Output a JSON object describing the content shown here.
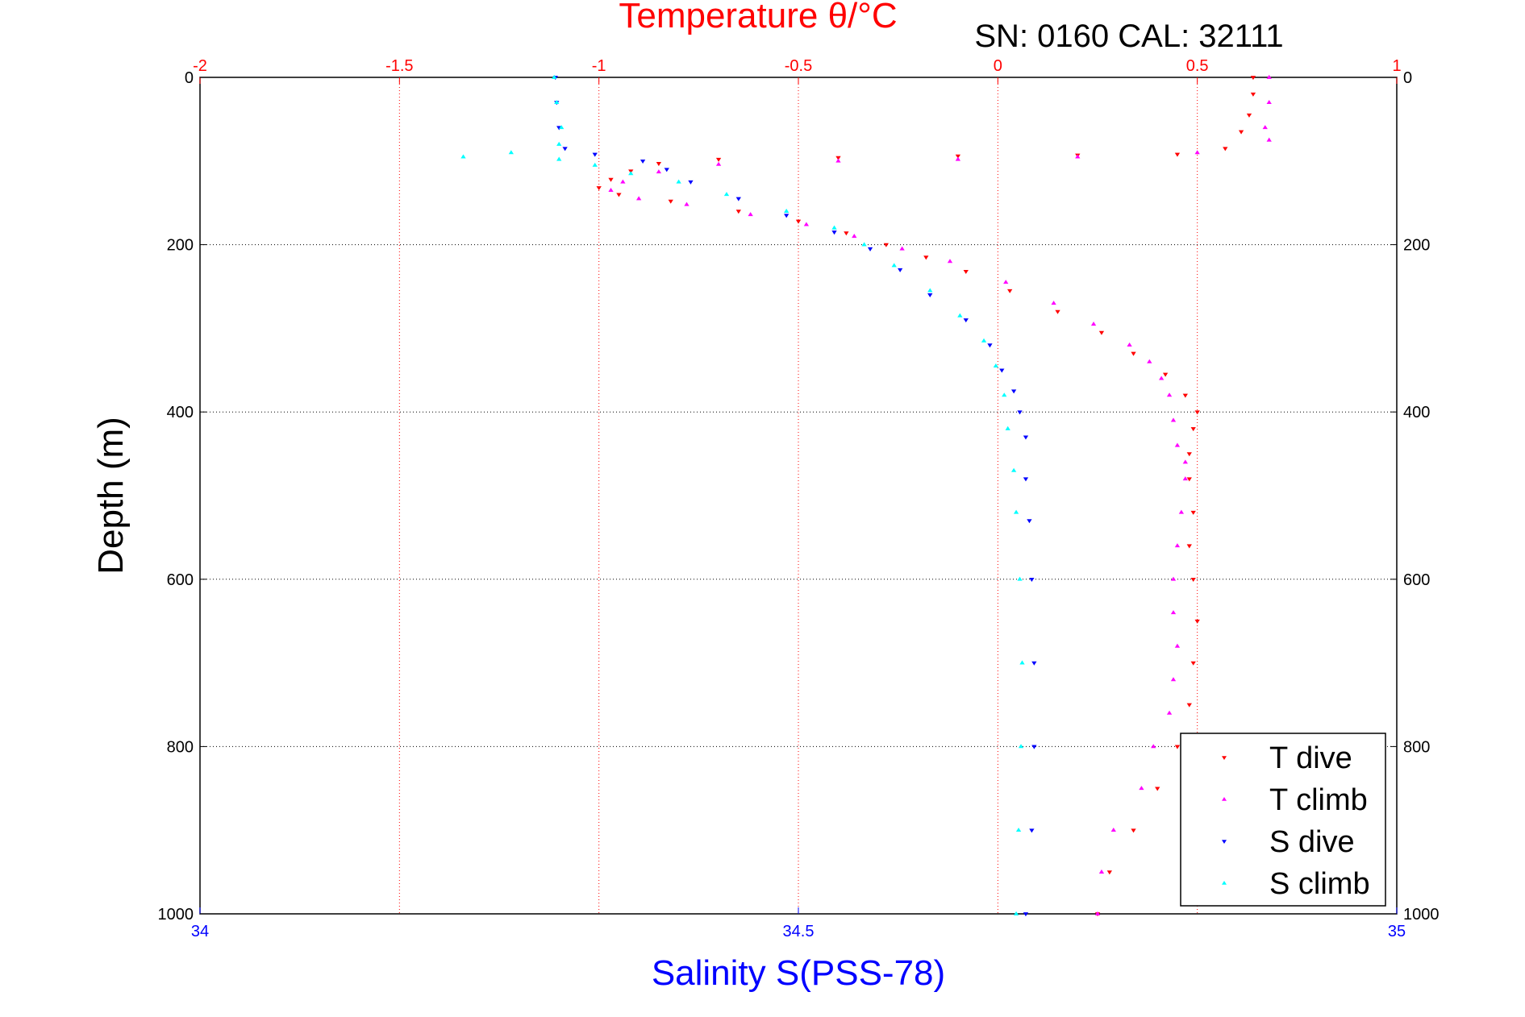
{
  "chart_data": {
    "type": "scatter",
    "header_text": "SN: 0160  CAL: 32111",
    "top_axis": {
      "label": "Temperature θ/°C",
      "range": [
        -2,
        1
      ],
      "ticks": [
        "-2",
        "-1.5",
        "-1",
        "-0.5",
        "0",
        "0.5",
        "1"
      ],
      "color": "#ff0000"
    },
    "bottom_axis": {
      "label": "Salinity S(PSS-78)",
      "range": [
        34,
        35
      ],
      "ticks": [
        "34",
        "34.5",
        "35"
      ],
      "color": "#0000ff"
    },
    "y_axis": {
      "label": "Depth (m)",
      "range": [
        0,
        1000
      ],
      "reversed": true,
      "ticks": [
        "0",
        "200",
        "400",
        "600",
        "800",
        "1000"
      ]
    },
    "grid": true,
    "legend_position": "bottom-right",
    "series": [
      {
        "name": "T dive",
        "axis": "top",
        "marker": "▾",
        "color": "#ff0000",
        "points": [
          [
            0.64,
            0
          ],
          [
            0.64,
            20
          ],
          [
            0.63,
            45
          ],
          [
            0.61,
            65
          ],
          [
            0.57,
            85
          ],
          [
            0.45,
            92
          ],
          [
            0.2,
            93
          ],
          [
            -0.1,
            94
          ],
          [
            -0.4,
            96
          ],
          [
            -0.7,
            98
          ],
          [
            -0.85,
            103
          ],
          [
            -0.92,
            112
          ],
          [
            -0.97,
            122
          ],
          [
            -1.0,
            132
          ],
          [
            -0.95,
            140
          ],
          [
            -0.82,
            148
          ],
          [
            -0.65,
            160
          ],
          [
            -0.5,
            172
          ],
          [
            -0.38,
            186
          ],
          [
            -0.28,
            200
          ],
          [
            -0.18,
            215
          ],
          [
            -0.08,
            232
          ],
          [
            0.03,
            255
          ],
          [
            0.15,
            280
          ],
          [
            0.26,
            305
          ],
          [
            0.34,
            330
          ],
          [
            0.42,
            355
          ],
          [
            0.47,
            380
          ],
          [
            0.5,
            400
          ],
          [
            0.49,
            420
          ],
          [
            0.48,
            450
          ],
          [
            0.48,
            480
          ],
          [
            0.49,
            520
          ],
          [
            0.48,
            560
          ],
          [
            0.49,
            600
          ],
          [
            0.5,
            650
          ],
          [
            0.49,
            700
          ],
          [
            0.48,
            750
          ],
          [
            0.45,
            800
          ],
          [
            0.4,
            850
          ],
          [
            0.34,
            900
          ],
          [
            0.28,
            950
          ],
          [
            0.25,
            1000
          ]
        ]
      },
      {
        "name": "T climb",
        "axis": "top",
        "marker": "▴",
        "color": "#ff00ff",
        "points": [
          [
            0.68,
            0
          ],
          [
            0.68,
            30
          ],
          [
            0.67,
            60
          ],
          [
            0.68,
            75
          ],
          [
            0.5,
            90
          ],
          [
            0.2,
            95
          ],
          [
            -0.1,
            98
          ],
          [
            -0.4,
            100
          ],
          [
            -0.7,
            104
          ],
          [
            -0.85,
            113
          ],
          [
            -0.94,
            125
          ],
          [
            -0.97,
            135
          ],
          [
            -0.9,
            145
          ],
          [
            -0.78,
            152
          ],
          [
            -0.62,
            164
          ],
          [
            -0.48,
            176
          ],
          [
            -0.36,
            190
          ],
          [
            -0.24,
            205
          ],
          [
            -0.12,
            220
          ],
          [
            0.02,
            245
          ],
          [
            0.14,
            270
          ],
          [
            0.24,
            295
          ],
          [
            0.33,
            320
          ],
          [
            0.38,
            340
          ],
          [
            0.41,
            360
          ],
          [
            0.43,
            380
          ],
          [
            0.44,
            410
          ],
          [
            0.45,
            440
          ],
          [
            0.47,
            460
          ],
          [
            0.47,
            480
          ],
          [
            0.46,
            520
          ],
          [
            0.45,
            560
          ],
          [
            0.44,
            600
          ],
          [
            0.44,
            640
          ],
          [
            0.45,
            680
          ],
          [
            0.44,
            720
          ],
          [
            0.43,
            760
          ],
          [
            0.39,
            800
          ],
          [
            0.36,
            850
          ],
          [
            0.29,
            900
          ],
          [
            0.26,
            950
          ],
          [
            0.25,
            1000
          ]
        ]
      },
      {
        "name": "S dive",
        "axis": "bottom",
        "marker": "▾",
        "color": "#0000ff",
        "points": [
          [
            34.297,
            0
          ],
          [
            34.298,
            30
          ],
          [
            34.3,
            60
          ],
          [
            34.305,
            85
          ],
          [
            34.33,
            92
          ],
          [
            34.37,
            100
          ],
          [
            34.39,
            110
          ],
          [
            34.41,
            125
          ],
          [
            34.45,
            145
          ],
          [
            34.49,
            165
          ],
          [
            34.53,
            185
          ],
          [
            34.56,
            205
          ],
          [
            34.585,
            230
          ],
          [
            34.61,
            260
          ],
          [
            34.64,
            290
          ],
          [
            34.66,
            320
          ],
          [
            34.67,
            350
          ],
          [
            34.68,
            375
          ],
          [
            34.685,
            400
          ],
          [
            34.69,
            430
          ],
          [
            34.69,
            480
          ],
          [
            34.693,
            530
          ],
          [
            34.695,
            600
          ],
          [
            34.697,
            700
          ],
          [
            34.697,
            800
          ],
          [
            34.695,
            900
          ],
          [
            34.69,
            1000
          ]
        ]
      },
      {
        "name": "S climb",
        "axis": "bottom",
        "marker": "▴",
        "color": "#00ffff",
        "points": [
          [
            34.296,
            0
          ],
          [
            34.298,
            30
          ],
          [
            34.302,
            60
          ],
          [
            34.3,
            80
          ],
          [
            34.26,
            90
          ],
          [
            34.22,
            95
          ],
          [
            34.3,
            98
          ],
          [
            34.33,
            105
          ],
          [
            34.36,
            115
          ],
          [
            34.4,
            125
          ],
          [
            34.44,
            140
          ],
          [
            34.49,
            160
          ],
          [
            34.53,
            180
          ],
          [
            34.555,
            200
          ],
          [
            34.58,
            225
          ],
          [
            34.61,
            255
          ],
          [
            34.635,
            285
          ],
          [
            34.655,
            315
          ],
          [
            34.665,
            345
          ],
          [
            34.672,
            380
          ],
          [
            34.675,
            420
          ],
          [
            34.68,
            470
          ],
          [
            34.682,
            520
          ],
          [
            34.685,
            600
          ],
          [
            34.687,
            700
          ],
          [
            34.686,
            800
          ],
          [
            34.684,
            900
          ],
          [
            34.682,
            1000
          ]
        ]
      }
    ]
  }
}
